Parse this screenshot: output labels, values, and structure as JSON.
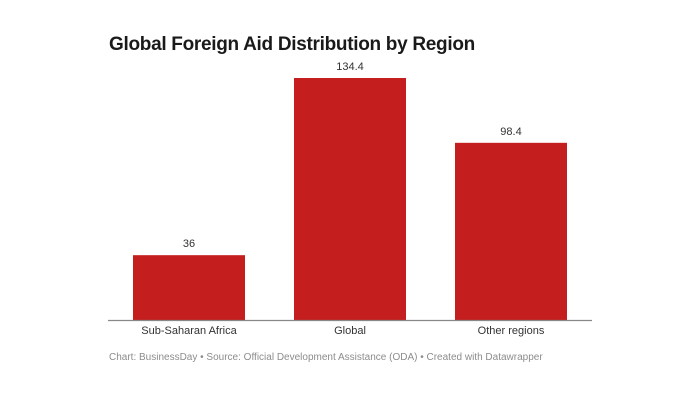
{
  "chart_data": {
    "type": "bar",
    "title": "Global Foreign Aid Distribution by Region",
    "categories": [
      "Sub-Saharan Africa",
      "Global",
      "Other regions"
    ],
    "values": [
      36,
      134.4,
      98.4
    ],
    "value_labels": [
      "36",
      "134.4",
      "98.4"
    ],
    "xlabel": "",
    "ylabel": "",
    "ylim": [
      0,
      134.4
    ],
    "grid": false,
    "bar_color": "#c41e1e"
  },
  "footer": "Chart: BusinessDay • Source: Official Development Assistance (ODA) • Created with Datawrapper"
}
